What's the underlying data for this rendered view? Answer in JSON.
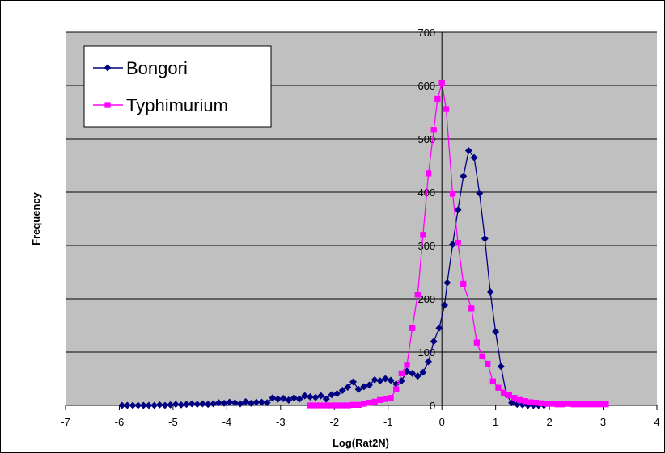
{
  "chart_data": {
    "type": "line",
    "title": "",
    "xlabel": "Log(Rat2N)",
    "ylabel": "Frequency",
    "xlim": [
      -7,
      4
    ],
    "ylim": [
      0,
      700
    ],
    "x_ticks": [
      -7,
      -6,
      -5,
      -4,
      -3,
      -2,
      -1,
      0,
      1,
      2,
      3,
      4
    ],
    "y_ticks": [
      0,
      100,
      200,
      300,
      400,
      500,
      600,
      700
    ],
    "grid": "horizontal",
    "legend_position": "top-left",
    "series": [
      {
        "name": "Bongori",
        "color": "#000080",
        "marker": "diamond",
        "points": [
          [
            -5.95,
            0
          ],
          [
            -5.85,
            0
          ],
          [
            -5.75,
            0
          ],
          [
            -5.65,
            0
          ],
          [
            -5.55,
            0
          ],
          [
            -5.45,
            0
          ],
          [
            -5.35,
            0
          ],
          [
            -5.25,
            1
          ],
          [
            -5.15,
            0
          ],
          [
            -5.05,
            1
          ],
          [
            -4.95,
            2
          ],
          [
            -4.85,
            1
          ],
          [
            -4.75,
            2
          ],
          [
            -4.65,
            3
          ],
          [
            -4.55,
            2
          ],
          [
            -4.45,
            3
          ],
          [
            -4.35,
            2
          ],
          [
            -4.25,
            3
          ],
          [
            -4.15,
            5
          ],
          [
            -4.05,
            4
          ],
          [
            -3.95,
            6
          ],
          [
            -3.85,
            5
          ],
          [
            -3.75,
            3
          ],
          [
            -3.65,
            7
          ],
          [
            -3.55,
            4
          ],
          [
            -3.45,
            6
          ],
          [
            -3.35,
            6
          ],
          [
            -3.25,
            5
          ],
          [
            -3.15,
            14
          ],
          [
            -3.05,
            12
          ],
          [
            -2.95,
            13
          ],
          [
            -2.85,
            10
          ],
          [
            -2.75,
            14
          ],
          [
            -2.65,
            12
          ],
          [
            -2.55,
            18
          ],
          [
            -2.45,
            16
          ],
          [
            -2.35,
            15
          ],
          [
            -2.25,
            18
          ],
          [
            -2.15,
            12
          ],
          [
            -2.05,
            20
          ],
          [
            -1.95,
            22
          ],
          [
            -1.85,
            28
          ],
          [
            -1.75,
            34
          ],
          [
            -1.65,
            44
          ],
          [
            -1.55,
            30
          ],
          [
            -1.45,
            35
          ],
          [
            -1.35,
            38
          ],
          [
            -1.25,
            48
          ],
          [
            -1.15,
            46
          ],
          [
            -1.05,
            50
          ],
          [
            -0.95,
            47
          ],
          [
            -0.85,
            40
          ],
          [
            -0.75,
            46
          ],
          [
            -0.65,
            64
          ],
          [
            -0.55,
            60
          ],
          [
            -0.45,
            55
          ],
          [
            -0.35,
            62
          ],
          [
            -0.25,
            82
          ],
          [
            -0.15,
            120
          ],
          [
            -0.05,
            145
          ],
          [
            0.05,
            188
          ],
          [
            0.1,
            230
          ],
          [
            0.2,
            302
          ],
          [
            0.3,
            367
          ],
          [
            0.4,
            430
          ],
          [
            0.5,
            478
          ],
          [
            0.6,
            465
          ],
          [
            0.7,
            398
          ],
          [
            0.8,
            313
          ],
          [
            0.9,
            213
          ],
          [
            1.0,
            138
          ],
          [
            1.1,
            73
          ],
          [
            1.2,
            20
          ],
          [
            1.3,
            5
          ],
          [
            1.4,
            2
          ],
          [
            1.5,
            1
          ],
          [
            1.6,
            0
          ],
          [
            1.7,
            0
          ],
          [
            1.8,
            0
          ],
          [
            1.9,
            0
          ]
        ]
      },
      {
        "name": "Typhimurium",
        "color": "#ff00ff",
        "marker": "square",
        "points": [
          [
            -2.45,
            0
          ],
          [
            -2.35,
            0
          ],
          [
            -2.25,
            0
          ],
          [
            -2.15,
            0
          ],
          [
            -2.05,
            0
          ],
          [
            -1.95,
            0
          ],
          [
            -1.85,
            0
          ],
          [
            -1.75,
            0
          ],
          [
            -1.65,
            1
          ],
          [
            -1.55,
            1
          ],
          [
            -1.45,
            3
          ],
          [
            -1.35,
            5
          ],
          [
            -1.25,
            7
          ],
          [
            -1.15,
            10
          ],
          [
            -1.05,
            12
          ],
          [
            -0.95,
            14
          ],
          [
            -0.85,
            30
          ],
          [
            -0.75,
            60
          ],
          [
            -0.65,
            76
          ],
          [
            -0.55,
            145
          ],
          [
            -0.45,
            208
          ],
          [
            -0.35,
            320
          ],
          [
            -0.25,
            435
          ],
          [
            -0.15,
            517
          ],
          [
            -0.08,
            575
          ],
          [
            0.0,
            605
          ],
          [
            0.08,
            556
          ],
          [
            0.2,
            397
          ],
          [
            0.3,
            305
          ],
          [
            0.4,
            228
          ],
          [
            0.55,
            182
          ],
          [
            0.65,
            118
          ],
          [
            0.75,
            92
          ],
          [
            0.85,
            78
          ],
          [
            0.95,
            45
          ],
          [
            1.05,
            33
          ],
          [
            1.15,
            24
          ],
          [
            1.25,
            19
          ],
          [
            1.35,
            14
          ],
          [
            1.45,
            10
          ],
          [
            1.55,
            8
          ],
          [
            1.65,
            6
          ],
          [
            1.75,
            5
          ],
          [
            1.85,
            4
          ],
          [
            1.95,
            3
          ],
          [
            2.05,
            3
          ],
          [
            2.15,
            2
          ],
          [
            2.25,
            2
          ],
          [
            2.35,
            3
          ],
          [
            2.45,
            2
          ],
          [
            2.55,
            2
          ],
          [
            2.65,
            2
          ],
          [
            2.75,
            2
          ],
          [
            2.85,
            2
          ],
          [
            2.95,
            2
          ],
          [
            3.05,
            2
          ]
        ]
      }
    ]
  }
}
